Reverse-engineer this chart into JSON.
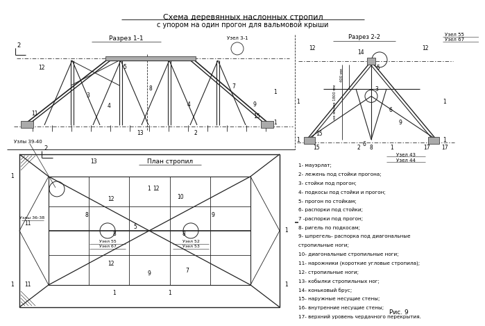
{
  "title_line1": "Схема деревянных наслонных стропил",
  "title_line2": "с упором на один прогон для вальмовой крыши",
  "bg_color": "#ffffff",
  "line_color": "#222222",
  "gray_fill": "#aaaaaa",
  "fig_label": "Рис. 9",
  "legend": [
    "1- мауэрлат;",
    "2- лежень под стойки прогона;",
    "3- стойки под прогон;",
    "4- подкосы под стойки и прогон;",
    "5- прогон по стойкам;",
    "6- распорки под стойки;",
    "7 -распорки под прогон;",
    "8- ригель по подкосам;",
    "9- шпрегель- распорка под диагональные",
    "стропильные ноги;",
    "10- диагональные стропильные ноги;",
    "11- нарожники (короткие угловые стропила);",
    "12- стропильные ноги;",
    "13- кобылки стропильных ног;",
    "14- коньковый брус;",
    "15- наружные несущие стены;",
    "16- внутренние несущие стены;",
    "17- верхний уровень чердачного перекрытия."
  ]
}
